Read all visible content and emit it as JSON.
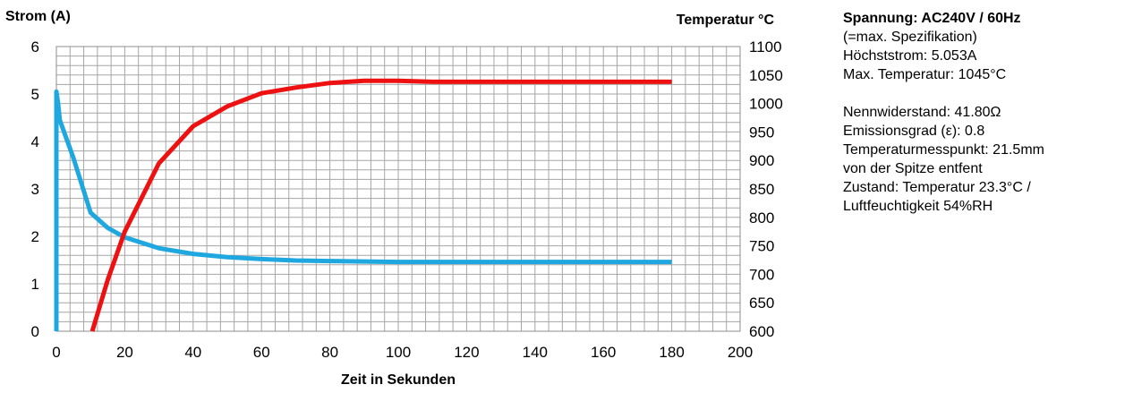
{
  "chart_data": {
    "type": "line",
    "xlabel": "Zeit in Sekunden",
    "ylabel": "Strom (A)",
    "y2label": "Temperatur °C",
    "xlim": [
      0,
      200
    ],
    "ylim": [
      0,
      6
    ],
    "y2lim": [
      600,
      1100
    ],
    "xticks": [
      "0",
      "20",
      "40",
      "60",
      "80",
      "100",
      "120",
      "140",
      "160",
      "180",
      "200"
    ],
    "yticks": [
      "0",
      "1",
      "2",
      "3",
      "4",
      "5",
      "6"
    ],
    "y2ticks": [
      "600",
      "650",
      "700",
      "750",
      "800",
      "850",
      "900",
      "950",
      "1000",
      "1050",
      "1100"
    ],
    "grid": true,
    "series": [
      {
        "axis": "left",
        "color": "#1fa8e0",
        "points": [
          [
            0,
            0
          ],
          [
            0,
            5.05
          ],
          [
            0.5,
            4.8
          ],
          [
            1,
            4.45
          ],
          [
            5,
            3.65
          ],
          [
            10,
            2.5
          ],
          [
            15,
            2.18
          ],
          [
            20,
            1.98
          ],
          [
            30,
            1.75
          ],
          [
            40,
            1.63
          ],
          [
            50,
            1.56
          ],
          [
            60,
            1.52
          ],
          [
            70,
            1.49
          ],
          [
            80,
            1.48
          ],
          [
            90,
            1.47
          ],
          [
            100,
            1.46
          ],
          [
            120,
            1.46
          ],
          [
            140,
            1.46
          ],
          [
            160,
            1.46
          ],
          [
            180,
            1.46
          ]
        ]
      },
      {
        "axis": "right",
        "color": "#ee1111",
        "points": [
          [
            10.5,
            600
          ],
          [
            15,
            690
          ],
          [
            20,
            775
          ],
          [
            30,
            895
          ],
          [
            40,
            960
          ],
          [
            50,
            995
          ],
          [
            60,
            1018
          ],
          [
            70,
            1028
          ],
          [
            80,
            1036
          ],
          [
            90,
            1040
          ],
          [
            100,
            1040
          ],
          [
            110,
            1038
          ],
          [
            120,
            1038
          ],
          [
            140,
            1038
          ],
          [
            160,
            1038
          ],
          [
            180,
            1038
          ]
        ]
      }
    ]
  },
  "info": {
    "title": "Spannung: AC240V / 60Hz",
    "spec": "(=max. Spezifikation)",
    "max_current": "Höchststrom: 5.053A",
    "max_temp": "Max. Temperatur: 1045°C",
    "resistance": "Nennwiderstand: 41.80Ω",
    "emissivity": "Emissionsgrad (ε): 0.8",
    "measure_point_1": "Temperaturmesspunkt: 21.5mm",
    "measure_point_2": "von der Spitze entfent",
    "condition_1": "Zustand: Temperatur 23.3°C /",
    "condition_2": "Luftfeuchtigkeit 54%RH"
  }
}
